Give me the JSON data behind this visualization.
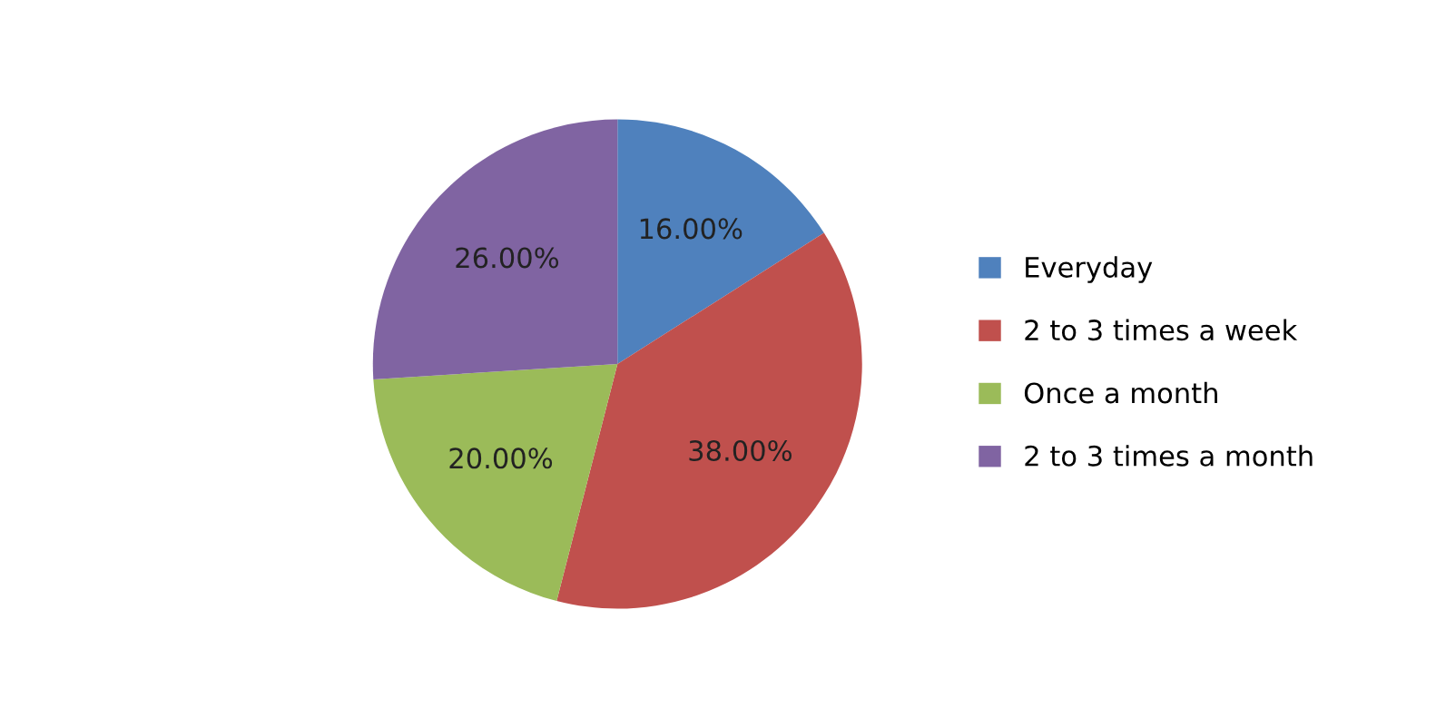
{
  "chart_data": {
    "type": "pie",
    "categories": [
      "Everyday",
      "2 to 3 times a week",
      "Once a month",
      "2 to 3 times a month"
    ],
    "values": [
      16,
      38,
      20,
      26
    ],
    "value_labels": [
      "16.00%",
      "38.00%",
      "20.00%",
      "26.00%"
    ],
    "colors": [
      "#4f81bd",
      "#c0504d",
      "#9bbb59",
      "#8064a2"
    ],
    "legend": "right"
  }
}
